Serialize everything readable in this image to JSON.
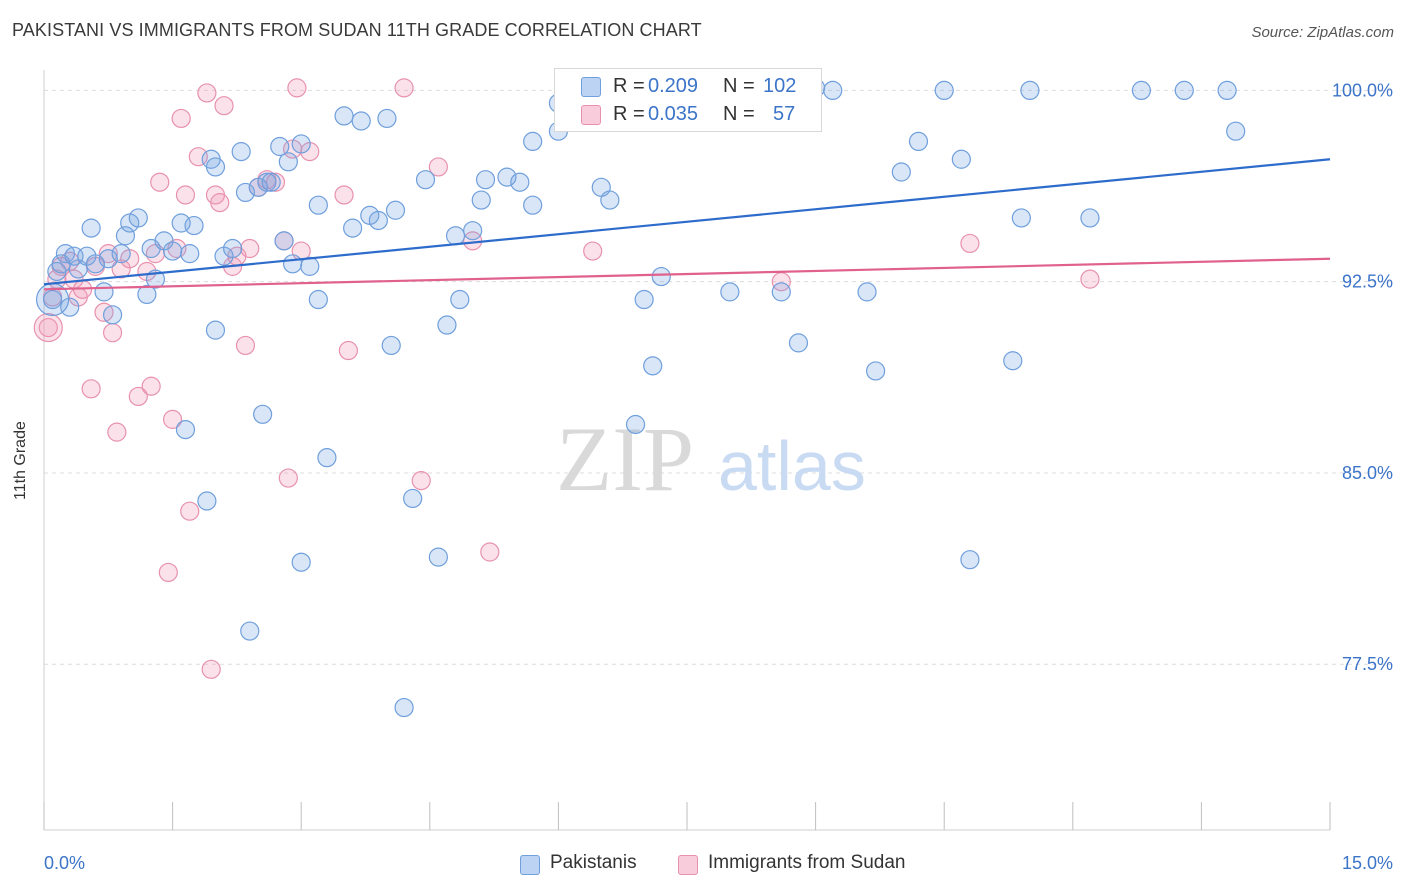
{
  "header": {
    "title": "PAKISTANI VS IMMIGRANTS FROM SUDAN 11TH GRADE CORRELATION CHART",
    "source": "Source: ZipAtlas.com"
  },
  "watermark": {
    "zip": "ZIP",
    "atlas": "atlas"
  },
  "legend": {
    "r_label": "R =",
    "n_label": "N =",
    "rows": [
      {
        "r": "0.209",
        "n": "102",
        "color": "#a9c6ef"
      },
      {
        "r": "0.035",
        "n": "57",
        "color": "#f5b8cb"
      }
    ]
  },
  "bottom_legend": [
    {
      "label": "Pakistanis",
      "color": "#a9c6ef"
    },
    {
      "label": "Immigrants from Sudan",
      "color": "#f5b8cb"
    }
  ],
  "colors": {
    "blue_fill": "rgba(120,165,228,0.28)",
    "blue_stroke": "#6f9fdc",
    "blue_line": "#2e6ccc",
    "pink_fill": "rgba(240,150,180,0.28)",
    "pink_stroke": "#e891ae",
    "pink_line": "#e0608e",
    "tick_text": "#3b74c9"
  },
  "chart_data": {
    "type": "scatter",
    "title": "PAKISTANI VS IMMIGRANTS FROM SUDAN 11TH GRADE CORRELATION CHART",
    "xlabel": "",
    "ylabel": "11th Grade",
    "xlim": [
      0,
      15
    ],
    "ylim": [
      71.0,
      100.8
    ],
    "x_tick_labels": [
      "0.0%",
      "15.0%"
    ],
    "x_tick_values": [
      0,
      15
    ],
    "y_tick_labels": [
      "100.0%",
      "92.5%",
      "85.0%",
      "77.5%"
    ],
    "y_tick_values": [
      100,
      92.5,
      85,
      77.5
    ],
    "grid": "horizontal dashed",
    "series": [
      {
        "name": "Pakistanis",
        "trend": [
          [
            0,
            92.4
          ],
          [
            15,
            97.3
          ]
        ],
        "points": [
          [
            0.1,
            91.8
          ],
          [
            0.15,
            92.9
          ],
          [
            0.2,
            93.2
          ],
          [
            0.25,
            93.6
          ],
          [
            0.3,
            91.5
          ],
          [
            0.35,
            93.5
          ],
          [
            0.4,
            93.0
          ],
          [
            0.5,
            93.5
          ],
          [
            0.55,
            94.6
          ],
          [
            0.6,
            93.2
          ],
          [
            0.7,
            92.1
          ],
          [
            0.75,
            93.4
          ],
          [
            0.8,
            91.2
          ],
          [
            0.9,
            93.6
          ],
          [
            0.95,
            94.3
          ],
          [
            1.0,
            94.8
          ],
          [
            1.1,
            95.0
          ],
          [
            1.2,
            92.0
          ],
          [
            1.25,
            93.8
          ],
          [
            1.3,
            92.6
          ],
          [
            1.4,
            94.1
          ],
          [
            1.5,
            93.7
          ],
          [
            1.6,
            94.8
          ],
          [
            1.65,
            86.7
          ],
          [
            1.7,
            93.6
          ],
          [
            1.75,
            94.7
          ],
          [
            1.9,
            83.9
          ],
          [
            1.95,
            97.3
          ],
          [
            2.0,
            97.0
          ],
          [
            2.0,
            90.6
          ],
          [
            2.1,
            93.5
          ],
          [
            2.2,
            93.8
          ],
          [
            2.3,
            97.6
          ],
          [
            2.35,
            96.0
          ],
          [
            2.4,
            78.8
          ],
          [
            2.5,
            96.2
          ],
          [
            2.55,
            87.3
          ],
          [
            2.6,
            96.4
          ],
          [
            2.65,
            96.4
          ],
          [
            2.75,
            97.8
          ],
          [
            2.8,
            94.1
          ],
          [
            2.85,
            97.2
          ],
          [
            2.9,
            93.2
          ],
          [
            3.0,
            97.9
          ],
          [
            3.0,
            81.5
          ],
          [
            3.1,
            93.1
          ],
          [
            3.2,
            95.5
          ],
          [
            3.2,
            91.8
          ],
          [
            3.3,
            85.6
          ],
          [
            3.5,
            99.0
          ],
          [
            3.6,
            94.6
          ],
          [
            3.7,
            98.8
          ],
          [
            3.8,
            95.1
          ],
          [
            3.9,
            94.9
          ],
          [
            4.0,
            98.9
          ],
          [
            4.05,
            90.0
          ],
          [
            4.1,
            95.3
          ],
          [
            4.2,
            75.8
          ],
          [
            4.3,
            84.0
          ],
          [
            4.45,
            96.5
          ],
          [
            4.6,
            81.7
          ],
          [
            4.7,
            90.8
          ],
          [
            4.8,
            94.3
          ],
          [
            4.85,
            91.8
          ],
          [
            5.0,
            94.5
          ],
          [
            5.1,
            95.7
          ],
          [
            5.15,
            96.5
          ],
          [
            5.4,
            96.6
          ],
          [
            5.55,
            96.4
          ],
          [
            5.7,
            95.5
          ],
          [
            5.7,
            98.0
          ],
          [
            6.0,
            98.4
          ],
          [
            6.0,
            99.5
          ],
          [
            6.5,
            96.2
          ],
          [
            6.6,
            95.7
          ],
          [
            6.7,
            100.0
          ],
          [
            6.9,
            86.9
          ],
          [
            7.0,
            91.8
          ],
          [
            7.1,
            89.2
          ],
          [
            7.2,
            92.7
          ],
          [
            7.8,
            100.1
          ],
          [
            8.0,
            92.1
          ],
          [
            8.6,
            92.1
          ],
          [
            8.8,
            90.1
          ],
          [
            8.9,
            100.0
          ],
          [
            9.2,
            100.0
          ],
          [
            9.6,
            92.1
          ],
          [
            9.7,
            89.0
          ],
          [
            10.0,
            96.8
          ],
          [
            10.2,
            98.0
          ],
          [
            10.7,
            97.3
          ],
          [
            10.8,
            81.6
          ],
          [
            11.3,
            89.4
          ],
          [
            11.4,
            95.0
          ],
          [
            12.2,
            95.0
          ],
          [
            13.3,
            100.0
          ],
          [
            13.8,
            100.0
          ],
          [
            13.9,
            98.4
          ],
          [
            9.0,
            100.1
          ],
          [
            11.5,
            100.0
          ],
          [
            12.8,
            100.0
          ],
          [
            10.5,
            100.0
          ]
        ]
      },
      {
        "name": "Immigrants from Sudan",
        "trend": [
          [
            0,
            92.2
          ],
          [
            15,
            93.4
          ]
        ],
        "points": [
          [
            0.05,
            90.7
          ],
          [
            0.1,
            91.9
          ],
          [
            0.15,
            92.6
          ],
          [
            0.2,
            93.1
          ],
          [
            0.3,
            93.3
          ],
          [
            0.35,
            92.6
          ],
          [
            0.4,
            91.9
          ],
          [
            0.45,
            92.2
          ],
          [
            0.55,
            88.3
          ],
          [
            0.6,
            93.1
          ],
          [
            0.7,
            91.3
          ],
          [
            0.75,
            93.6
          ],
          [
            0.8,
            90.5
          ],
          [
            0.85,
            86.6
          ],
          [
            0.9,
            93.0
          ],
          [
            1.0,
            93.4
          ],
          [
            1.1,
            88.0
          ],
          [
            1.2,
            92.9
          ],
          [
            1.25,
            88.4
          ],
          [
            1.3,
            93.6
          ],
          [
            1.35,
            96.4
          ],
          [
            1.45,
            81.1
          ],
          [
            1.5,
            87.1
          ],
          [
            1.55,
            93.8
          ],
          [
            1.6,
            98.9
          ],
          [
            1.65,
            95.9
          ],
          [
            1.7,
            83.5
          ],
          [
            1.8,
            97.4
          ],
          [
            1.9,
            99.9
          ],
          [
            1.95,
            77.3
          ],
          [
            2.0,
            95.9
          ],
          [
            2.05,
            95.6
          ],
          [
            2.1,
            99.4
          ],
          [
            2.2,
            93.1
          ],
          [
            2.25,
            93.5
          ],
          [
            2.35,
            90.0
          ],
          [
            2.4,
            93.8
          ],
          [
            2.5,
            96.2
          ],
          [
            2.6,
            96.5
          ],
          [
            2.7,
            96.4
          ],
          [
            2.8,
            94.1
          ],
          [
            2.85,
            84.8
          ],
          [
            2.9,
            97.7
          ],
          [
            2.95,
            100.1
          ],
          [
            3.0,
            93.7
          ],
          [
            3.1,
            97.6
          ],
          [
            3.5,
            95.9
          ],
          [
            3.55,
            89.8
          ],
          [
            4.2,
            100.1
          ],
          [
            4.4,
            84.7
          ],
          [
            4.6,
            97.0
          ],
          [
            5.2,
            81.9
          ],
          [
            5.0,
            94.1
          ],
          [
            6.4,
            93.7
          ],
          [
            8.6,
            92.5
          ],
          [
            10.8,
            94.0
          ],
          [
            12.2,
            92.6
          ]
        ]
      }
    ]
  }
}
